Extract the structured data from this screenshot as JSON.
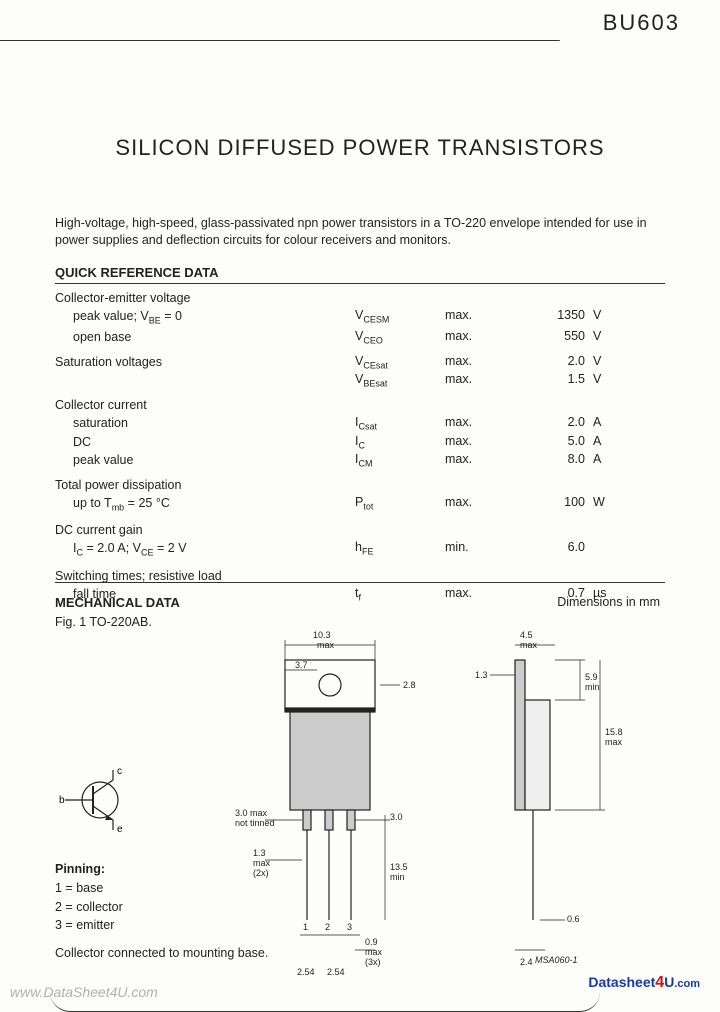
{
  "part_number": "BU603",
  "title": "SILICON DIFFUSED POWER TRANSISTORS",
  "description": "High-voltage, high-speed, glass-passivated npn power transistors in a TO-220 envelope intended for use in power supplies and deflection circuits for colour receivers and monitors.",
  "qrd_heading": "QUICK REFERENCE DATA",
  "qrd": [
    {
      "param": "Collector-emitter voltage",
      "subs": [
        {
          "label": "peak value; V_BE = 0",
          "sym": "V_CESM",
          "cond": "max.",
          "val": "1350",
          "unit": "V"
        },
        {
          "label": "open base",
          "sym": "V_CEO",
          "cond": "max.",
          "val": "550",
          "unit": "V"
        }
      ]
    },
    {
      "param": "Saturation voltages",
      "subs": [
        {
          "label": "",
          "sym": "V_CEsat",
          "cond": "max.",
          "val": "2.0",
          "unit": "V"
        },
        {
          "label": "",
          "sym": "V_BEsat",
          "cond": "max.",
          "val": "1.5",
          "unit": "V"
        }
      ]
    },
    {
      "param": "Collector current",
      "subs": [
        {
          "label": "saturation",
          "sym": "I_Csat",
          "cond": "max.",
          "val": "2.0",
          "unit": "A"
        },
        {
          "label": "DC",
          "sym": "I_C",
          "cond": "max.",
          "val": "5.0",
          "unit": "A"
        },
        {
          "label": "peak value",
          "sym": "I_CM",
          "cond": "max.",
          "val": "8.0",
          "unit": "A"
        }
      ]
    },
    {
      "param": "Total power dissipation",
      "subs": [
        {
          "label": "up to T_mb = 25 °C",
          "sym": "P_tot",
          "cond": "max.",
          "val": "100",
          "unit": "W"
        }
      ]
    },
    {
      "param": "DC current gain",
      "subs": [
        {
          "label": "I_C = 2.0 A; V_CE = 2 V",
          "sym": "h_FE",
          "cond": "min.",
          "val": "6.0",
          "unit": ""
        }
      ]
    },
    {
      "param": "Switching times; resistive load",
      "subs": [
        {
          "label": "fall time",
          "sym": "t_f",
          "cond": "max.",
          "val": "0.7",
          "unit": "µs"
        }
      ]
    }
  ],
  "mech_heading": "MECHANICAL DATA",
  "dim_label": "Dimensions in mm",
  "fig_label": "Fig. 1  TO-220AB.",
  "pinning_head": "Pinning:",
  "pinning": [
    "1 = base",
    "2 = collector",
    "3 = emitter"
  ],
  "collector_note": "Collector connected to mounting base.",
  "symbol_labels": {
    "b": "b",
    "c": "c",
    "e": "e"
  },
  "dims": {
    "w_max": "10.3 max",
    "hole_off": "3.7",
    "hole_d": "2.8",
    "lead_untinned": "3.0 max not tinned",
    "lead_tinned": "3.0",
    "lead_len": "13.5 min",
    "lead_w": "1.3 max (2x)",
    "lead_pitch": "2.54",
    "lead_t": "0.9 max (3x)",
    "side_top": "4.5 max",
    "side_off": "1.3",
    "tab_h": "5.9 min",
    "body_h": "15.8 max",
    "side_pitch": "2.4",
    "side_lead": "0.6"
  },
  "msacode": "MSA060-1",
  "watermark": "www.DataSheet4U.com",
  "logo": {
    "a": "Data",
    "b": "sheet",
    "c": "4",
    "d": "U",
    "e": ".com"
  }
}
